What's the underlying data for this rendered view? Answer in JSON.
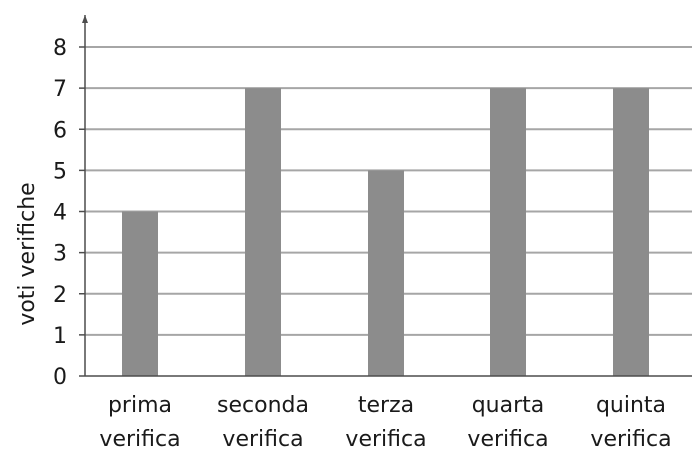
{
  "chart_data": {
    "type": "bar",
    "categories": [
      [
        "prima",
        "verifica"
      ],
      [
        "seconda",
        "verifica"
      ],
      [
        "terza",
        "verifica"
      ],
      [
        "quarta",
        "verifica"
      ],
      [
        "quinta",
        "verifica"
      ]
    ],
    "values": [
      4,
      7,
      5,
      7,
      7
    ],
    "title": "",
    "xlabel": "",
    "ylabel": "voti verifiche",
    "ylim": [
      0,
      8
    ],
    "yticks": [
      0,
      1,
      2,
      3,
      4,
      5,
      6,
      7,
      8
    ],
    "grid": true,
    "bar_color": "#8c8c8c",
    "grid_color": "#a6a6a6"
  }
}
